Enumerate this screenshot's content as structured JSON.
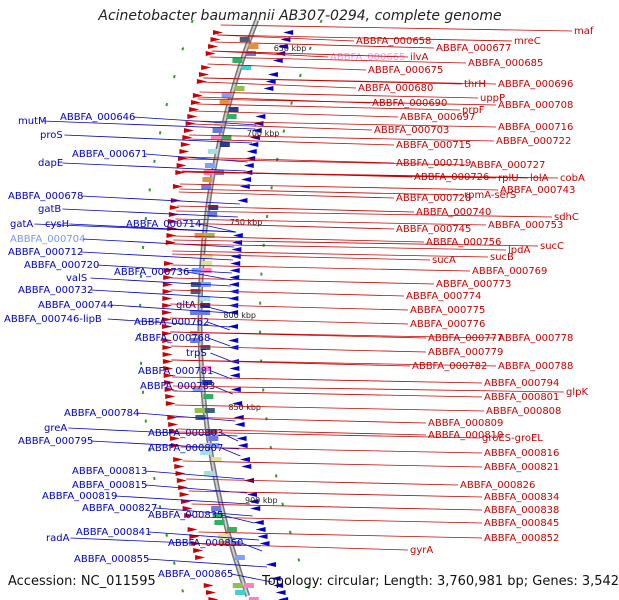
{
  "title": "Acinetobacter baumannii AB307-0294, complete genome",
  "accession_text": "Accession: NC_011595",
  "topology_text": "Topology: circular; Length: 3,760,981 bp; Genes: 3,542",
  "colors": {
    "forward": "#cc0000",
    "reverse": "#0000cc",
    "highlight": "#7799ee",
    "pseudo_label": "#ee99ee",
    "backbone": "#999999",
    "tick_green": "#339933"
  },
  "ticks": [
    {
      "label": "650 kbp"
    },
    {
      "label": "700 kbp"
    },
    {
      "label": "750 kbp"
    },
    {
      "label": "800 kbp"
    },
    {
      "label": "850 kbp"
    },
    {
      "label": "900 kbp"
    }
  ],
  "left_labels": [
    "ABBFA_000646",
    "mutM",
    "proS",
    "ABBFA_000671",
    "dapE",
    "ABBFA_000678",
    "gatB",
    "gatA",
    "cysH",
    "ABBFA_000714",
    "ABBFA_000704",
    "ABBFA_000712",
    "ABBFA_000720",
    "ABBFA_000736",
    "valS",
    "ABBFA_000732",
    "gltA",
    "ABBFA_000744",
    "ABBFA_000746-lipB",
    "ABBFA_000762",
    "ABBFA_000768",
    "trpS",
    "ABBFA_000781",
    "ABBFA_000783",
    "ABBFA_000784",
    "greA",
    "ABBFA_000803",
    "ABBFA_000795",
    "ABBFA_000807",
    "ABBFA_000813",
    "ABBFA_000815",
    "ABBFA_000819",
    "ABBFA_000827",
    "ABBFA_000835",
    "radA",
    "ABBFA_000841",
    "ABBFA_000850",
    "ABBFA_000855",
    "ABBFA_000865"
  ],
  "right_labels": [
    "maf",
    "ABBFA_000658",
    "mreC",
    "ABBFA_000677",
    "ABBFA_000665",
    "ilvA",
    "ABBFA_000685",
    "ABBFA_000675",
    "thrH",
    "ABBFA_000696",
    "ABBFA_000680",
    "uppP",
    "ABBFA_000690",
    "ABBFA_000708",
    "prpF",
    "ABBFA_000697",
    "ABBFA_000703",
    "ABBFA_000716",
    "ABBFA_000715",
    "ABBFA_000722",
    "ABBFA_000719",
    "ABBFA_000727",
    "ABBFA_000726",
    "rplU",
    "lolA",
    "cobA",
    "rpmA-serS",
    "ABBFA_000743",
    "ABBFA_000728",
    "ABBFA_000740",
    "sdhC",
    "ABBFA_000753",
    "ABBFA_000745",
    "ABBFA_000756",
    "lpdA",
    "sucC",
    "sucA",
    "sucB",
    "ABBFA_000769",
    "ABBFA_000773",
    "ABBFA_000774",
    "ABBFA_000775",
    "ABBFA_000776",
    "ABBFA_000777",
    "ABBFA_000778",
    "ABBFA_000779",
    "ABBFA_000782",
    "ABBFA_000788",
    "ABBFA_000794",
    "glpK",
    "ABBFA_000801",
    "ABBFA_000808",
    "ABBFA_000809",
    "groES-groEL",
    "ABBFA_000810",
    "ABBFA_000816",
    "ABBFA_000821",
    "ABBFA_000826",
    "ABBFA_000834",
    "ABBFA_000838",
    "ABBFA_000845",
    "ABBFA_000852",
    "gyrA"
  ]
}
